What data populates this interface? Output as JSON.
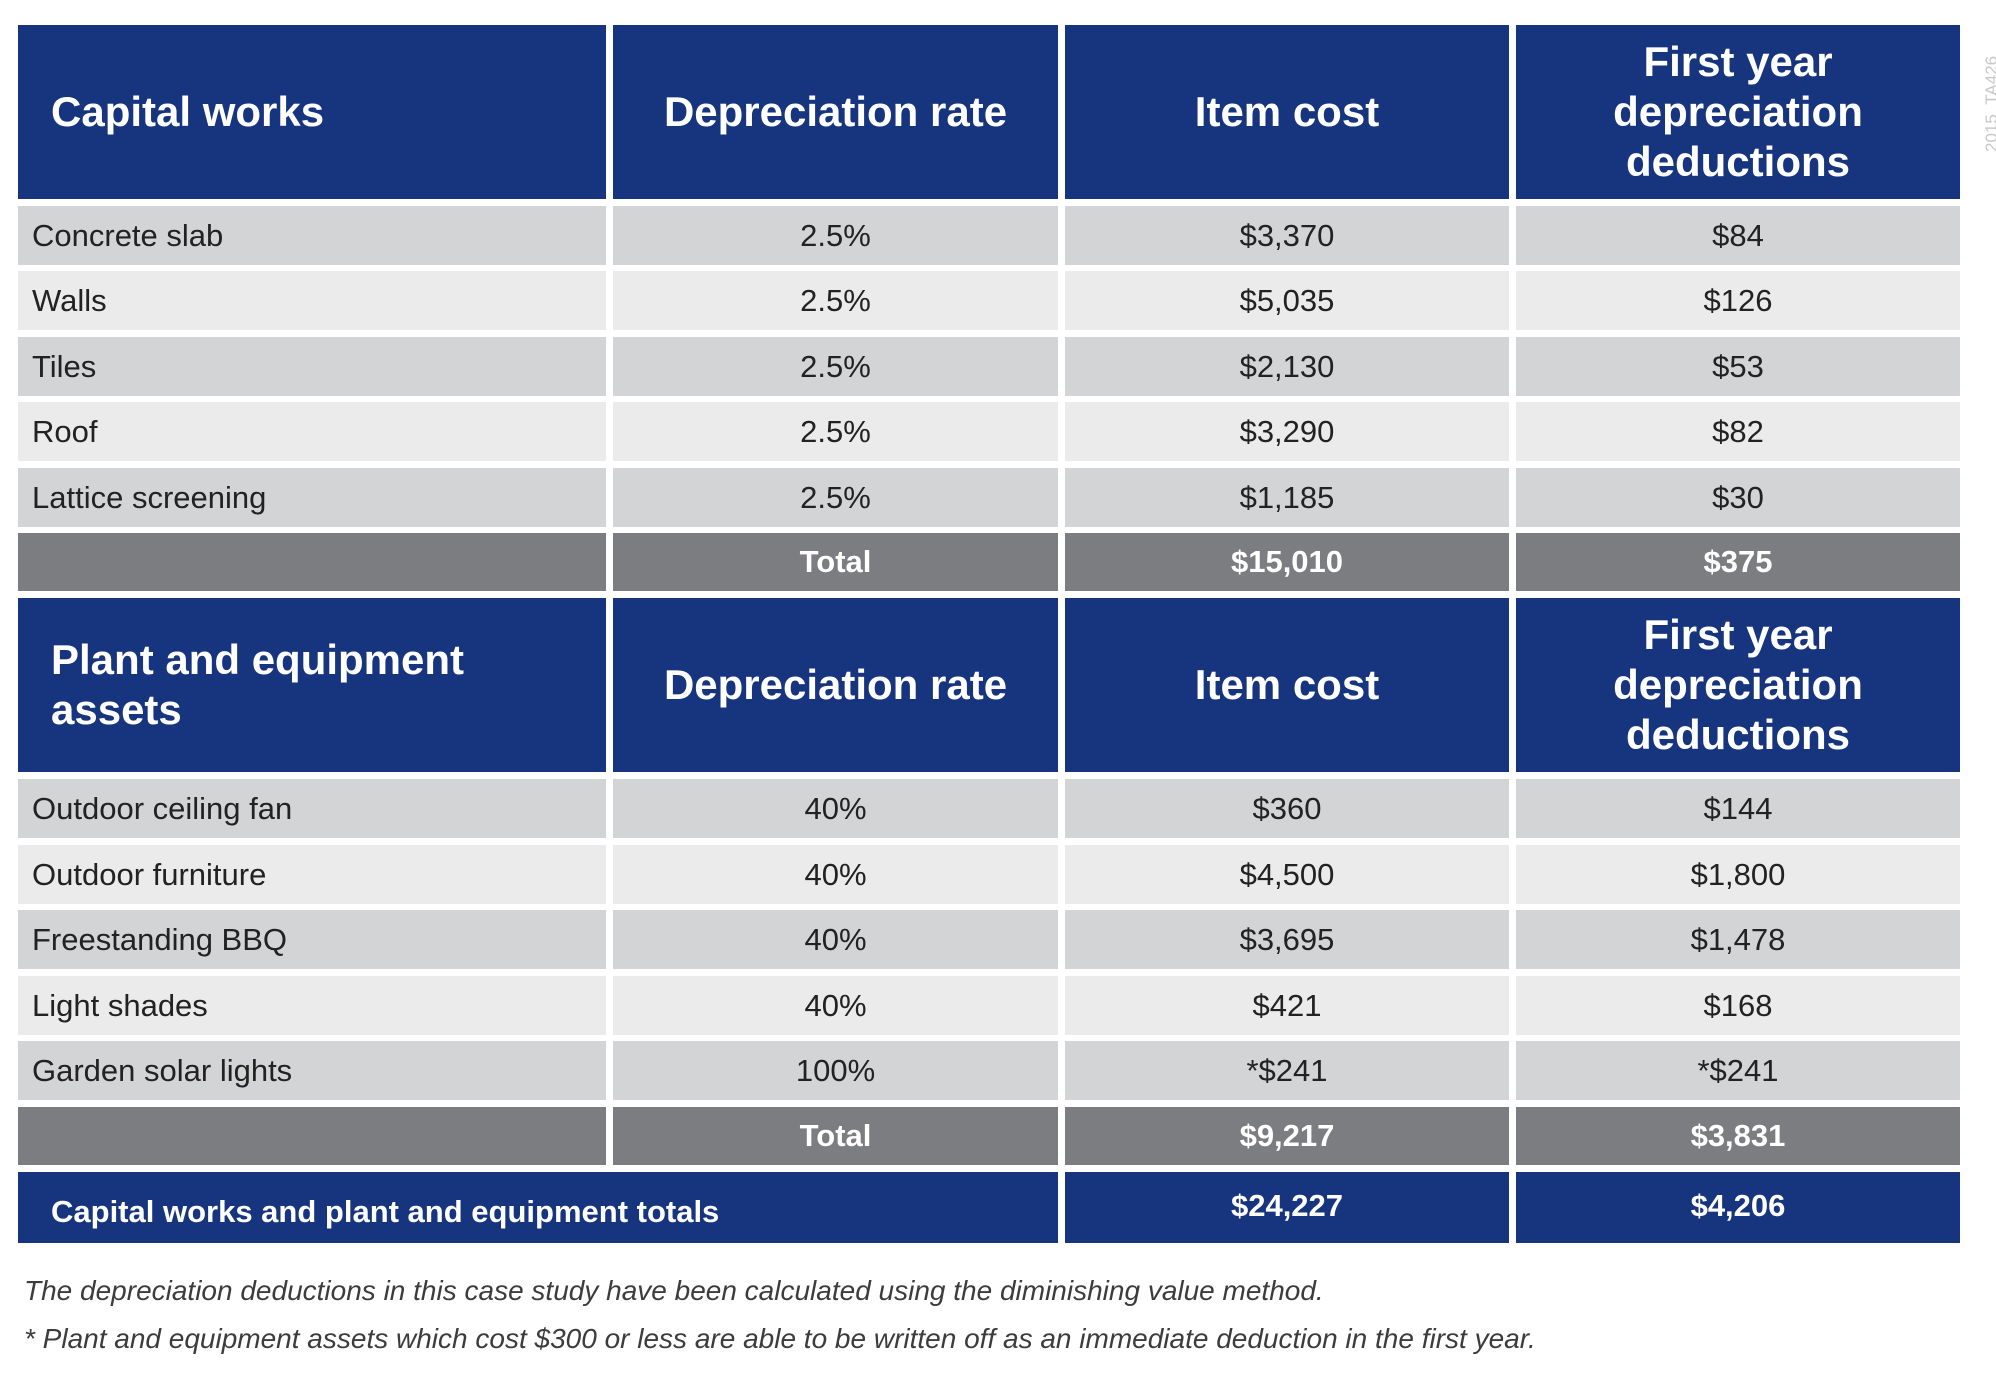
{
  "capital_works": {
    "headers": [
      "Capital works",
      "Depreciation rate",
      "Item cost",
      "First year depreciation deductions"
    ],
    "rows": [
      [
        "Concrete slab",
        "2.5%",
        "$3,370",
        "$84"
      ],
      [
        "Walls",
        "2.5%",
        "$5,035",
        "$126"
      ],
      [
        "Tiles",
        "2.5%",
        "$2,130",
        "$53"
      ],
      [
        "Roof",
        "2.5%",
        "$3,290",
        "$82"
      ],
      [
        "Lattice screening",
        "2.5%",
        "$1,185",
        "$30"
      ]
    ],
    "total": [
      "",
      "Total",
      "$15,010",
      "$375"
    ]
  },
  "plant_equipment": {
    "headers": [
      "Plant and equipment assets",
      "Depreciation rate",
      "Item cost",
      "First year depreciation deductions"
    ],
    "rows": [
      [
        "Outdoor ceiling fan",
        "40%",
        "$360",
        "$144"
      ],
      [
        "Outdoor furniture",
        "40%",
        "$4,500",
        "$1,800"
      ],
      [
        "Freestanding BBQ",
        "40%",
        "$3,695",
        "$1,478"
      ],
      [
        "Light shades",
        "40%",
        "$421",
        "$168"
      ],
      [
        "Garden solar lights",
        "100%",
        "*$241",
        "*$241"
      ]
    ],
    "total": [
      "",
      "Total",
      "$9,217",
      "$3,831"
    ]
  },
  "grand_total": {
    "label": "Capital works and plant and equipment totals",
    "item_cost": "$24,227",
    "deductions": "$4,206"
  },
  "notes": [
    "The depreciation deductions in this case study have been calculated using the diminishing value method.",
    "* Plant and equipment assets which cost $300 or less are able to be written off as an immediate deduction in the first year."
  ],
  "watermark": "2015_TA426",
  "colors": {
    "header_blue": "#17357f",
    "row_dark": "#d3d4d6",
    "row_light": "#ebebeb",
    "total_gray": "#7c7d80"
  }
}
